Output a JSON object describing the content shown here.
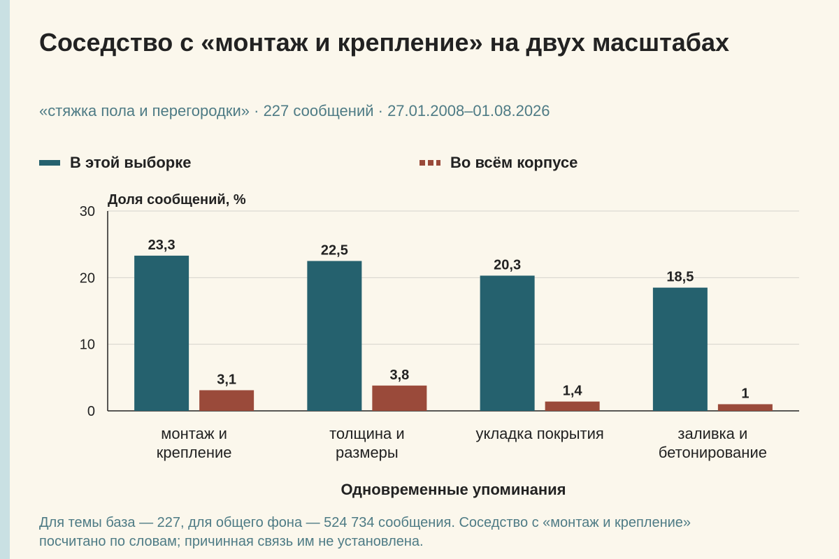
{
  "title": "Соседство с «монтаж и крепление» на двух масштабах",
  "subtitle": "«стяжка пола и перегородки» · 227 сообщений · 27.01.2008–01.08.2026",
  "footnote": "Для темы база — 227, для общего фона — 524 734 сообщения. Соседство с «монтаж и крепление» посчитано по словам; причинная связь им не установлена.",
  "colors": {
    "series1": "#25616e",
    "series2": "#9a4a3a"
  },
  "chart_data": {
    "type": "bar",
    "ylabel": "Доля сообщений, %",
    "xlabel": "Одновременные упоминания",
    "ylim": [
      0,
      30
    ],
    "yticks": [
      0,
      10,
      20,
      30
    ],
    "grid": true,
    "legend": "top",
    "categories": [
      [
        "монтаж и",
        "крепление"
      ],
      [
        "толщина и",
        "размеры"
      ],
      [
        "укладка покрытия"
      ],
      [
        "заливка и",
        "бетонирование"
      ]
    ],
    "series": [
      {
        "name": "В этой выборке",
        "values": [
          23.3,
          22.5,
          20.3,
          18.5
        ],
        "labels": [
          "23,3",
          "22,5",
          "20,3",
          "18,5"
        ]
      },
      {
        "name": "Во всём корпусе",
        "values": [
          3.1,
          3.8,
          1.4,
          1
        ],
        "labels": [
          "3,1",
          "3,8",
          "1,4",
          "1"
        ]
      }
    ]
  }
}
